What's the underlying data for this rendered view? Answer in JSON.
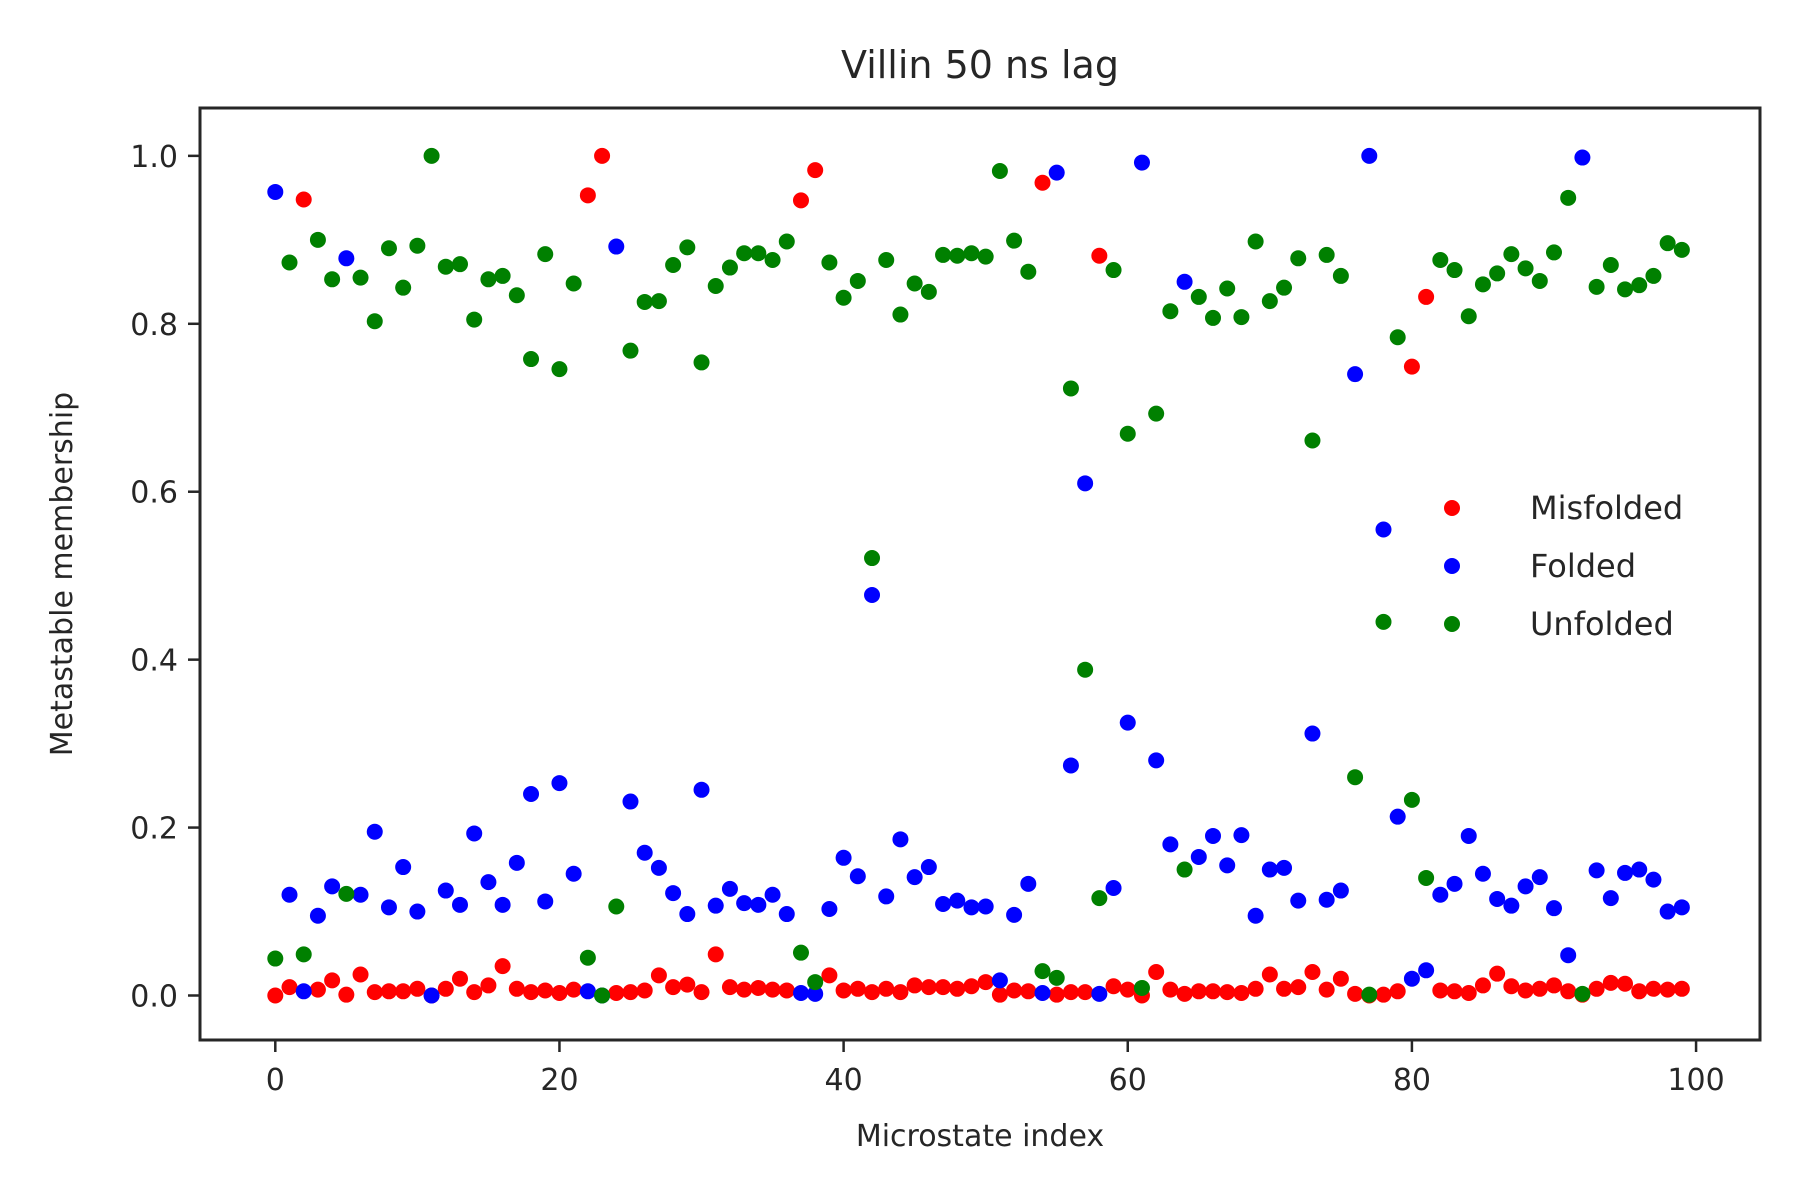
{
  "chart_data": {
    "type": "scatter",
    "title": "Villin 50 ns lag",
    "xlabel": "Microstate index",
    "ylabel": "Metastable membership",
    "xlim": [
      -5.3,
      104.5
    ],
    "ylim": [
      -0.053,
      1.057
    ],
    "xticks": [
      0,
      20,
      40,
      60,
      80,
      100
    ],
    "xtick_labels": [
      "0",
      "20",
      "40",
      "60",
      "80",
      "100"
    ],
    "yticks": [
      0.0,
      0.2,
      0.4,
      0.6,
      0.8,
      1.0
    ],
    "ytick_labels": [
      "0.0",
      "0.2",
      "0.4",
      "0.6",
      "0.8",
      "1.0"
    ],
    "grid": false,
    "legend_position": "center-right",
    "x": [
      0,
      1,
      2,
      3,
      4,
      5,
      6,
      7,
      8,
      9,
      10,
      11,
      12,
      13,
      14,
      15,
      16,
      17,
      18,
      19,
      20,
      21,
      22,
      23,
      24,
      25,
      26,
      27,
      28,
      29,
      30,
      31,
      32,
      33,
      34,
      35,
      36,
      37,
      38,
      39,
      40,
      41,
      42,
      43,
      44,
      45,
      46,
      47,
      48,
      49,
      50,
      51,
      52,
      53,
      54,
      55,
      56,
      57,
      58,
      59,
      60,
      61,
      62,
      63,
      64,
      65,
      66,
      67,
      68,
      69,
      70,
      71,
      72,
      73,
      74,
      75,
      76,
      77,
      78,
      79,
      80,
      81,
      82,
      83,
      84,
      85,
      86,
      87,
      88,
      89,
      90,
      91,
      92,
      93,
      94,
      95,
      96,
      97,
      98,
      99
    ],
    "series": [
      {
        "name": "Misfolded",
        "color": "#ff0000",
        "values": [
          0.0,
          0.01,
          0.948,
          0.007,
          0.018,
          0.001,
          0.025,
          0.004,
          0.005,
          0.005,
          0.008,
          0.0,
          0.008,
          0.02,
          0.004,
          0.012,
          0.035,
          0.008,
          0.004,
          0.006,
          0.003,
          0.007,
          0.953,
          1.0,
          0.003,
          0.004,
          0.006,
          0.024,
          0.01,
          0.013,
          0.004,
          0.049,
          0.01,
          0.007,
          0.009,
          0.007,
          0.006,
          0.947,
          0.983,
          0.024,
          0.006,
          0.008,
          0.004,
          0.008,
          0.004,
          0.012,
          0.01,
          0.01,
          0.008,
          0.011,
          0.016,
          0.001,
          0.006,
          0.005,
          0.968,
          0.001,
          0.004,
          0.004,
          0.881,
          0.011,
          0.007,
          0.0,
          0.028,
          0.007,
          0.002,
          0.005,
          0.005,
          0.004,
          0.003,
          0.008,
          0.025,
          0.008,
          0.01,
          0.028,
          0.007,
          0.02,
          0.002,
          0.0,
          0.001,
          0.005,
          0.749,
          0.832,
          0.006,
          0.005,
          0.003,
          0.012,
          0.026,
          0.011,
          0.006,
          0.008,
          0.012,
          0.005,
          0.001,
          0.008,
          0.015,
          0.014,
          0.005,
          0.008,
          0.007,
          0.008
        ]
      },
      {
        "name": "Folded",
        "color": "#0000ff",
        "values": [
          0.957,
          0.12,
          0.005,
          0.095,
          0.13,
          0.878,
          0.12,
          0.195,
          0.105,
          0.153,
          0.1,
          0.0,
          0.125,
          0.108,
          0.193,
          0.135,
          0.108,
          0.158,
          0.24,
          0.112,
          0.253,
          0.145,
          0.005,
          0.0,
          0.892,
          0.231,
          0.17,
          0.152,
          0.122,
          0.097,
          0.245,
          0.107,
          0.127,
          0.11,
          0.108,
          0.12,
          0.097,
          0.003,
          0.002,
          0.103,
          0.164,
          0.142,
          0.477,
          0.118,
          0.186,
          0.141,
          0.153,
          0.109,
          0.113,
          0.105,
          0.106,
          0.018,
          0.096,
          0.133,
          0.003,
          0.98,
          0.274,
          0.61,
          0.002,
          0.128,
          0.325,
          0.992,
          0.28,
          0.18,
          0.85,
          0.165,
          0.19,
          0.155,
          0.191,
          0.095,
          0.15,
          0.152,
          0.113,
          0.312,
          0.114,
          0.125,
          0.74,
          1.0,
          0.555,
          0.213,
          0.02,
          0.03,
          0.12,
          0.133,
          0.19,
          0.145,
          0.115,
          0.107,
          0.13,
          0.141,
          0.104,
          0.048,
          0.998,
          0.149,
          0.116,
          0.146,
          0.15,
          0.138,
          0.1,
          0.105
        ]
      },
      {
        "name": "Unfolded",
        "color": "#008000",
        "values": [
          0.044,
          0.873,
          0.049,
          0.9,
          0.853,
          0.121,
          0.855,
          0.803,
          0.89,
          0.843,
          0.893,
          1.0,
          0.868,
          0.871,
          0.805,
          0.853,
          0.857,
          0.834,
          0.758,
          0.883,
          0.746,
          0.848,
          0.045,
          0.0,
          0.106,
          0.768,
          0.826,
          0.827,
          0.87,
          0.891,
          0.754,
          0.845,
          0.867,
          0.884,
          0.884,
          0.876,
          0.898,
          0.051,
          0.016,
          0.873,
          0.831,
          0.851,
          0.521,
          0.876,
          0.811,
          0.848,
          0.838,
          0.882,
          0.881,
          0.884,
          0.88,
          0.982,
          0.899,
          0.862,
          0.029,
          0.021,
          0.723,
          0.388,
          0.116,
          0.864,
          0.669,
          0.009,
          0.693,
          0.815,
          0.15,
          0.832,
          0.807,
          0.842,
          0.808,
          0.898,
          0.827,
          0.843,
          0.878,
          0.661,
          0.882,
          0.857,
          0.26,
          0.001,
          0.445,
          0.784,
          0.233,
          0.14,
          0.876,
          0.864,
          0.809,
          0.847,
          0.86,
          0.883,
          0.866,
          0.851,
          0.885,
          0.95,
          0.002,
          0.844,
          0.87,
          0.841,
          0.846,
          0.857,
          0.896,
          0.888
        ]
      }
    ]
  }
}
